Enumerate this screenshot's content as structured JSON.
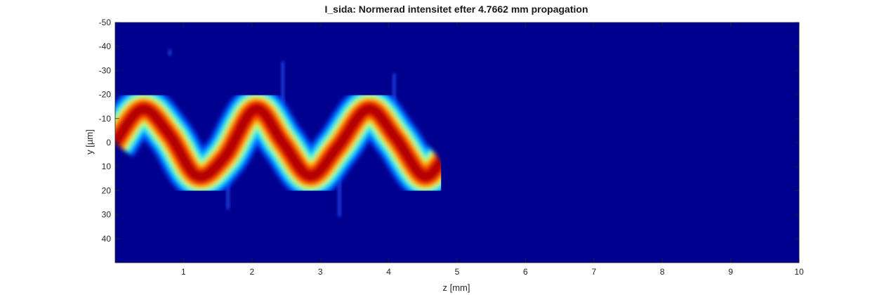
{
  "chart_data": {
    "type": "heatmap",
    "title": "I_sida: Normerad intensitet efter 4.7662 mm propagation",
    "xlabel": "z [mm]",
    "ylabel": "y [µm]",
    "xlim": [
      0,
      10
    ],
    "ylim": [
      -50,
      50
    ],
    "y_axis_direction": "reversed",
    "grid": false,
    "colormap": "jet",
    "x_ticks": [
      "1",
      "2",
      "3",
      "4",
      "5",
      "6",
      "7",
      "8",
      "9",
      "10"
    ],
    "y_ticks": [
      "-50",
      "-40",
      "-30",
      "-20",
      "-10",
      "0",
      "10",
      "20",
      "30",
      "40"
    ],
    "propagated_z_max_mm": 4.7662,
    "beam_path": {
      "z": [
        0.0,
        0.4,
        0.8,
        1.2,
        1.6,
        2.05,
        2.45,
        2.85,
        3.25,
        3.7,
        4.1,
        4.5,
        4.7662
      ],
      "y_center": [
        0,
        -14,
        -3,
        14,
        6,
        -14,
        0,
        14,
        2,
        -14,
        -2,
        14,
        8
      ],
      "half_width_um": 7
    },
    "side_lobes": [
      {
        "z": 0.8,
        "y_from": -38,
        "y_to": -37
      },
      {
        "z": 1.65,
        "y_from": 12,
        "y_to": 27
      },
      {
        "z": 2.45,
        "y_from": -33,
        "y_to": -12
      },
      {
        "z": 3.28,
        "y_from": 10,
        "y_to": 30
      },
      {
        "z": 4.08,
        "y_from": -28,
        "y_to": -12
      }
    ]
  }
}
